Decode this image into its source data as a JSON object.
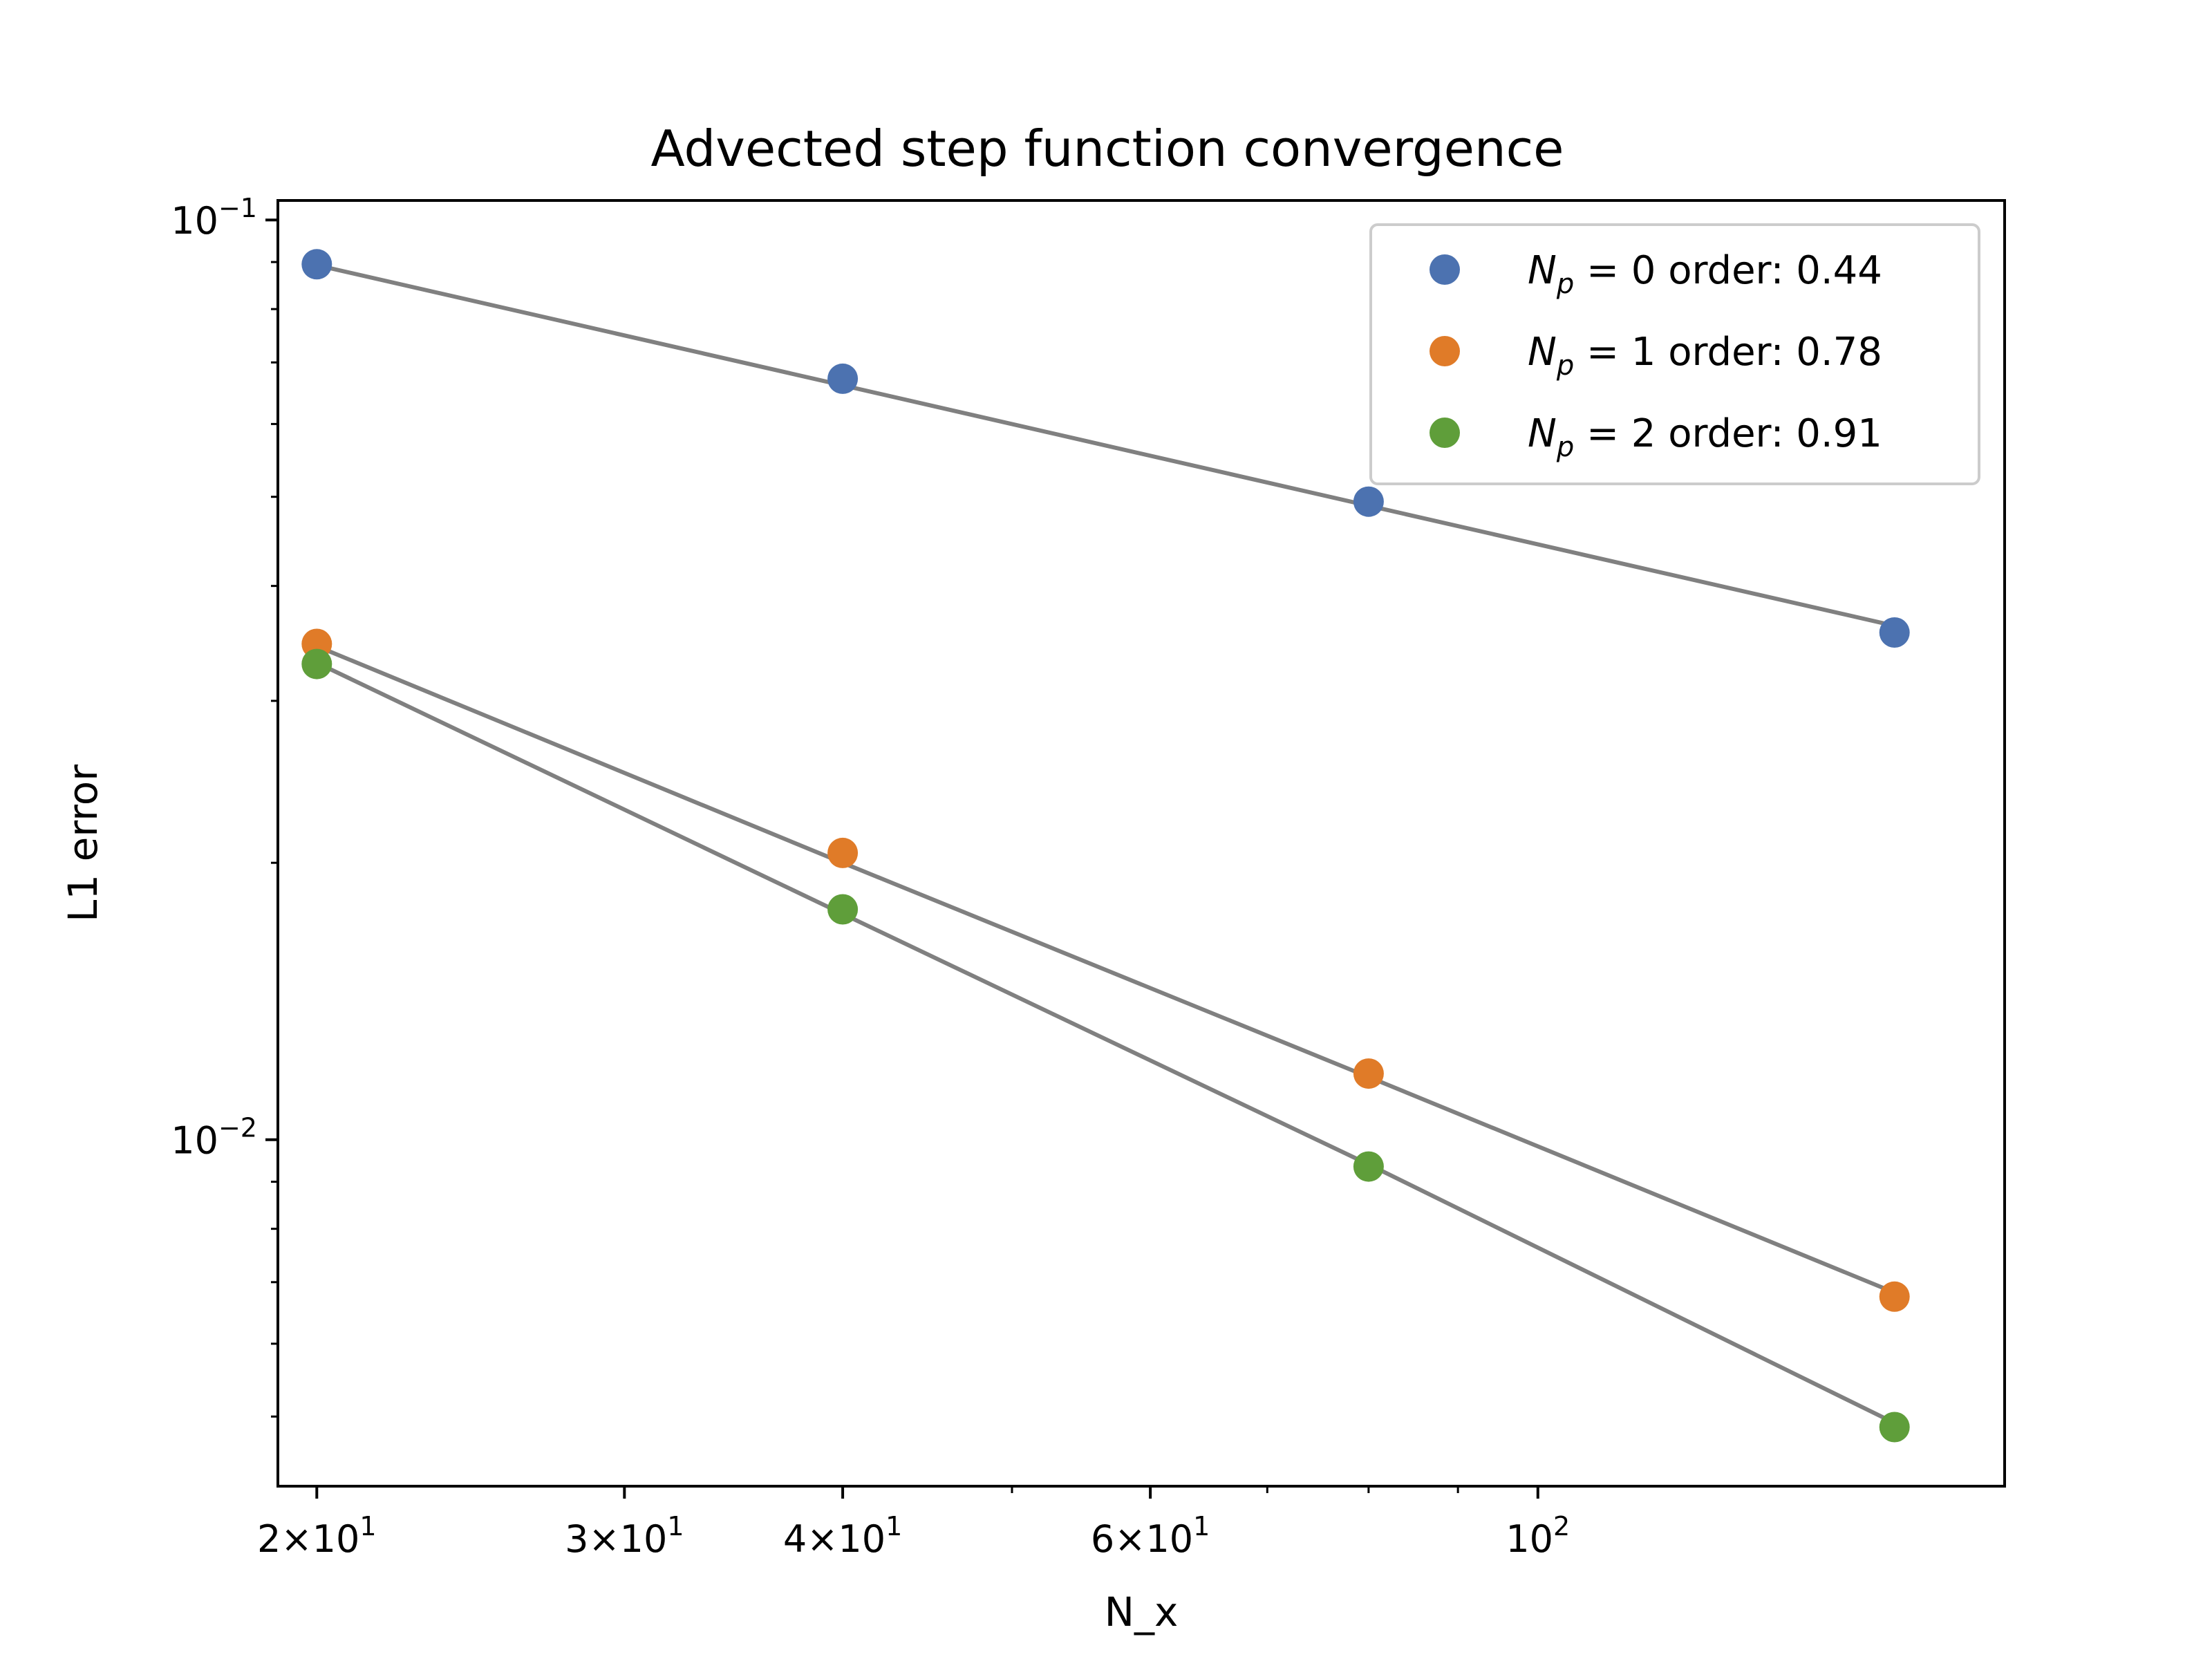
{
  "chart_data": {
    "type": "scatter",
    "title": "Advected step function convergence",
    "xlabel": "N_x",
    "ylabel": "L1 error",
    "xscale": "log",
    "yscale": "log",
    "xlim": [
      19,
      185
    ],
    "ylim": [
      0.0042,
      0.105
    ],
    "grid": false,
    "legend_position": "top-right",
    "x": [
      20,
      40,
      80,
      160
    ],
    "series": [
      {
        "name": "N_p = 0 order: 0.44",
        "legend_prefix": "N",
        "legend_sub": "p",
        "legend_suffix": " = 0 order: 0.44",
        "color": "#4c72b0",
        "values": [
          0.0895,
          0.0672,
          0.0494,
          0.0356
        ],
        "fit": [
          0.0893,
          0.0661,
          0.0489,
          0.0362
        ]
      },
      {
        "name": "N_p = 1 order: 0.78",
        "legend_prefix": "N",
        "legend_sub": "p",
        "legend_suffix": " = 1 order: 0.78",
        "color": "#e07b28",
        "values": [
          0.0346,
          0.0205,
          0.0118,
          0.00675
        ],
        "fit": [
          0.0344,
          0.02,
          0.0117,
          0.00682
        ]
      },
      {
        "name": "N_p = 2 order: 0.91",
        "legend_prefix": "N",
        "legend_sub": "p",
        "legend_suffix": " = 2 order: 0.91",
        "color": "#5f9e3a",
        "values": [
          0.0329,
          0.0178,
          0.00935,
          0.00487
        ],
        "fit": [
          0.033,
          0.0176,
          0.0094,
          0.00492
        ]
      }
    ],
    "x_ticks": [
      {
        "value": 20,
        "mantissa": "2×10",
        "exp": "1"
      },
      {
        "value": 30,
        "mantissa": "3×10",
        "exp": "1"
      },
      {
        "value": 40,
        "mantissa": "4×10",
        "exp": "1"
      },
      {
        "value": 60,
        "mantissa": "6×10",
        "exp": "1"
      },
      {
        "value": 100,
        "mantissa": "10",
        "exp": "2"
      }
    ],
    "x_minor_ticks": [
      50,
      70,
      80,
      90
    ],
    "y_ticks": [
      {
        "value": 0.1,
        "mantissa": "10",
        "exp": "−1"
      },
      {
        "value": 0.01,
        "mantissa": "10",
        "exp": "−2"
      }
    ],
    "y_minor_ticks": [
      0.005,
      0.006,
      0.007,
      0.008,
      0.009,
      0.02,
      0.03,
      0.04,
      0.05,
      0.06,
      0.07,
      0.08,
      0.09
    ]
  }
}
